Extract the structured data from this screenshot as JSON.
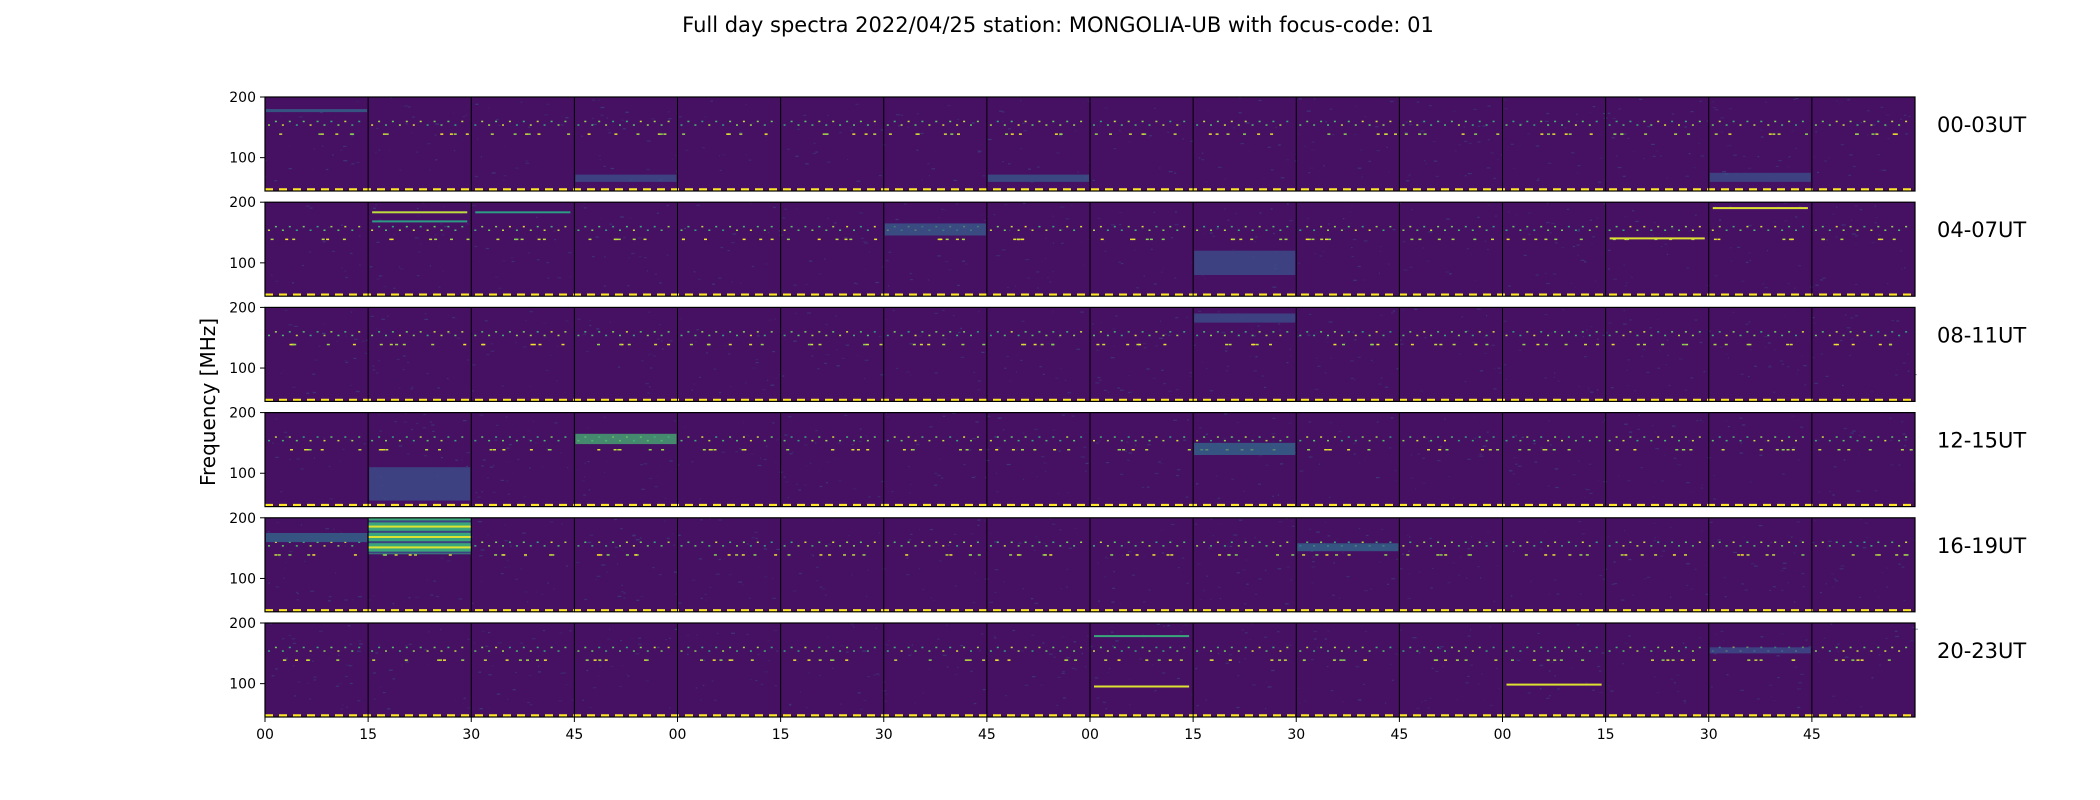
{
  "title": "Full day spectra 2022/04/25 station: MONGOLIA-UB with focus-code: 01",
  "chart_data": {
    "type": "heatmap",
    "title": "Full day spectra 2022/04/25 station: MONGOLIA-UB with focus-code: 01",
    "ylabel": "Frequency [MHz]",
    "xlabel": "",
    "colormap": "viridis",
    "ylim": [
      45,
      200
    ],
    "y_ticks": [
      "100",
      "200"
    ],
    "x_ticks": [
      "00",
      "15",
      "30",
      "45",
      "00",
      "15",
      "30",
      "45",
      "00",
      "15",
      "30",
      "45",
      "00",
      "15",
      "30",
      "45"
    ],
    "rows": [
      {
        "label": "00-03UT"
      },
      {
        "label": "04-07UT"
      },
      {
        "label": "08-11UT"
      },
      {
        "label": "12-15UT"
      },
      {
        "label": "16-19UT"
      },
      {
        "label": "20-23UT"
      }
    ],
    "panels_per_row": 16,
    "panel_minutes": 15,
    "features": [
      {
        "row": 0,
        "panel": 0,
        "kind": "broadband",
        "freq": [
          175,
          180
        ],
        "level": 0.35
      },
      {
        "row": 0,
        "panel": 3,
        "kind": "broadband",
        "freq": [
          60,
          72
        ],
        "level": 0.25
      },
      {
        "row": 0,
        "panel": 7,
        "kind": "broadband",
        "freq": [
          60,
          72
        ],
        "level": 0.28
      },
      {
        "row": 0,
        "panel": 14,
        "kind": "broadband",
        "freq": [
          60,
          75
        ],
        "level": 0.25
      },
      {
        "row": 1,
        "panel": 1,
        "kind": "line",
        "freq": 185,
        "level": 0.9
      },
      {
        "row": 1,
        "panel": 1,
        "kind": "line",
        "freq": 170,
        "level": 0.55
      },
      {
        "row": 1,
        "panel": 2,
        "kind": "line",
        "freq": 185,
        "level": 0.55
      },
      {
        "row": 1,
        "panel": 6,
        "kind": "broadband",
        "freq": [
          145,
          165
        ],
        "level": 0.3
      },
      {
        "row": 1,
        "panel": 9,
        "kind": "broadband",
        "freq": [
          80,
          120
        ],
        "level": 0.25
      },
      {
        "row": 1,
        "panel": 13,
        "kind": "line",
        "freq": 142,
        "level": 0.95
      },
      {
        "row": 1,
        "panel": 14,
        "kind": "line",
        "freq": 192,
        "level": 0.95
      },
      {
        "row": 2,
        "panel": 9,
        "kind": "broadband",
        "freq": [
          175,
          190
        ],
        "level": 0.25
      },
      {
        "row": 3,
        "panel": 3,
        "kind": "broadband",
        "freq": [
          148,
          165
        ],
        "level": 0.65
      },
      {
        "row": 3,
        "panel": 1,
        "kind": "broadband",
        "freq": [
          55,
          110
        ],
        "level": 0.25
      },
      {
        "row": 3,
        "panel": 9,
        "kind": "broadband",
        "freq": [
          130,
          150
        ],
        "level": 0.35
      },
      {
        "row": 4,
        "panel": 1,
        "kind": "burst",
        "freq": [
          140,
          200
        ],
        "level": 0.6
      },
      {
        "row": 4,
        "panel": 0,
        "kind": "broadband",
        "freq": [
          160,
          175
        ],
        "level": 0.35
      },
      {
        "row": 4,
        "panel": 10,
        "kind": "broadband",
        "freq": [
          145,
          158
        ],
        "level": 0.35
      },
      {
        "row": 5,
        "panel": 8,
        "kind": "line",
        "freq": 180,
        "level": 0.6
      },
      {
        "row": 5,
        "panel": 8,
        "kind": "line",
        "freq": 97,
        "level": 0.95
      },
      {
        "row": 5,
        "panel": 12,
        "kind": "line",
        "freq": 100,
        "level": 0.95
      },
      {
        "row": 5,
        "panel": 14,
        "kind": "broadband",
        "freq": [
          150,
          160
        ],
        "level": 0.25
      }
    ],
    "bottom_marker": {
      "freq": 47,
      "color": "#fde725",
      "style": "dashed"
    }
  }
}
